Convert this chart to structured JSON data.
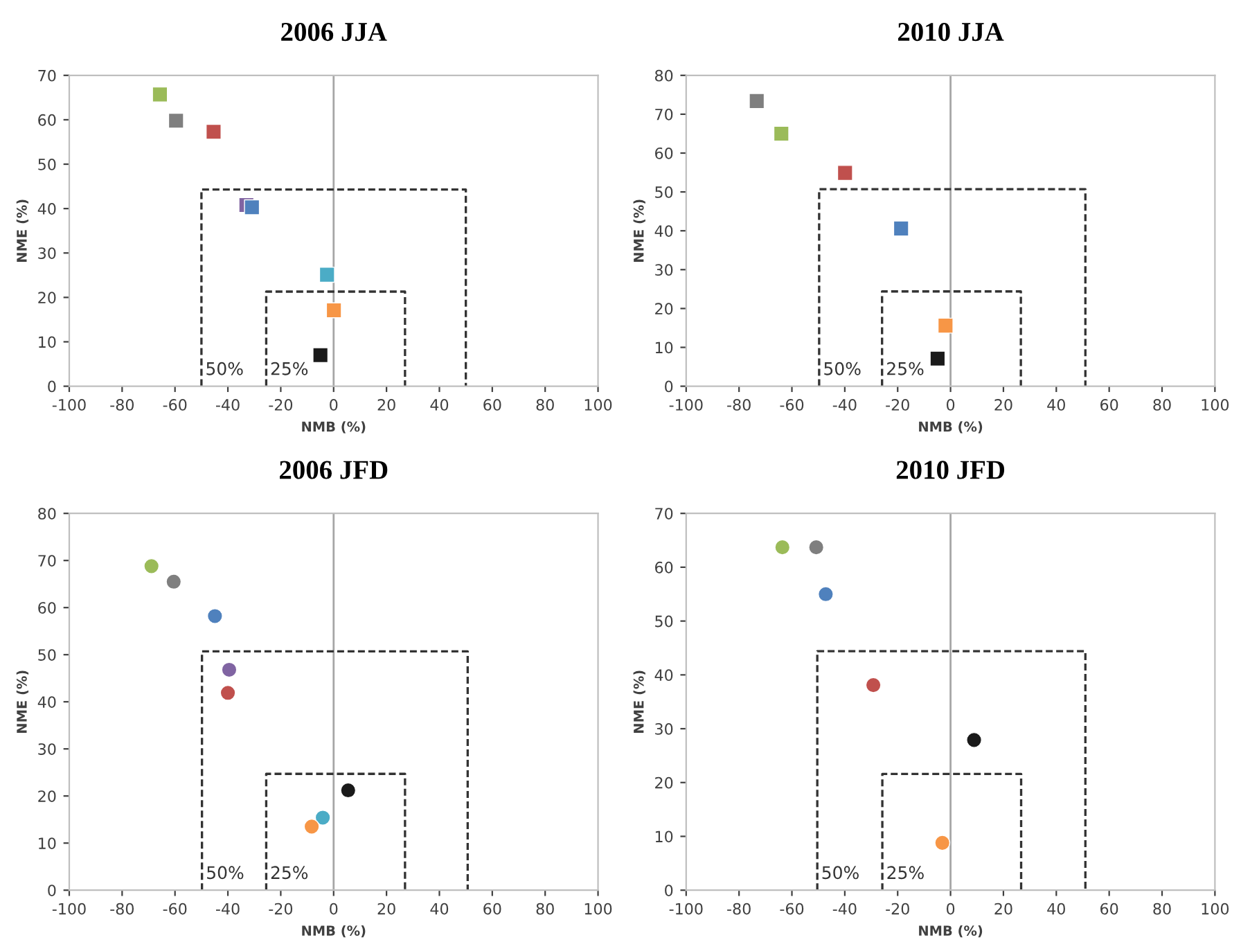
{
  "chart_data": [
    {
      "type": "scatter",
      "title": "2006 JJA",
      "xlabel": "NMB (%)",
      "ylabel": "NME (%)",
      "marker": "square",
      "xlim": [
        -100,
        100
      ],
      "ylim": [
        0,
        70
      ],
      "xticks": [
        -100,
        -80,
        -60,
        -40,
        -20,
        0,
        20,
        40,
        60,
        80,
        100
      ],
      "yticks": [
        0,
        10,
        20,
        30,
        40,
        50,
        60,
        70
      ],
      "ref_lines": [
        {
          "axis": "x",
          "value": 0,
          "color": "#a6a6a6"
        }
      ],
      "series": [
        {
          "color": "#4f81bd",
          "x": [
            -30.9
          ],
          "values": [
            40.3
          ]
        },
        {
          "color": "#f79646",
          "x": [
            0.1
          ],
          "values": [
            17.1
          ]
        },
        {
          "color": "#9bbb59",
          "x": [
            -65.7
          ],
          "values": [
            65.7
          ]
        },
        {
          "color": "#c0504d",
          "x": [
            -45.4
          ],
          "values": [
            57.3
          ]
        },
        {
          "color": "#8064a2",
          "x": [
            -33.0
          ],
          "values": [
            40.8
          ]
        },
        {
          "color": "#4bacc6",
          "x": [
            -2.5
          ],
          "values": [
            25.1
          ]
        },
        {
          "color": "#1a1a1a",
          "x": [
            -5.0
          ],
          "values": [
            7.0
          ]
        },
        {
          "color": "#7f7f7f",
          "x": [
            -59.6
          ],
          "values": [
            59.8
          ]
        },
        {
          "type": "line",
          "name": "50%",
          "color": "#333333",
          "line_style": "dashed",
          "marker": "none",
          "x": [
            -50,
            -50,
            50,
            50
          ],
          "values": [
            0,
            44.3,
            44.3,
            0
          ]
        },
        {
          "type": "line",
          "name": "25%",
          "color": "#333333",
          "line_style": "dashed",
          "marker": "none",
          "x": [
            -25.5,
            -25.5,
            27,
            27
          ],
          "values": [
            0,
            21.3,
            21.3,
            0
          ]
        }
      ]
    },
    {
      "type": "scatter",
      "title": "2010 JJA",
      "xlabel": "NMB (%)",
      "ylabel": "NME (%)",
      "marker": "square",
      "xlim": [
        -100,
        100
      ],
      "ylim": [
        0,
        80
      ],
      "xticks": [
        -100,
        -80,
        -60,
        -40,
        -20,
        0,
        20,
        40,
        60,
        80,
        100
      ],
      "yticks": [
        0,
        10,
        20,
        30,
        40,
        50,
        60,
        70,
        80
      ],
      "ref_lines": [
        {
          "axis": "x",
          "value": 0,
          "color": "#a6a6a6"
        }
      ],
      "series": [
        {
          "color": "#4f81bd",
          "x": [
            -18.7
          ],
          "values": [
            40.6
          ]
        },
        {
          "color": "#f79646",
          "x": [
            -1.9
          ],
          "values": [
            15.6
          ]
        },
        {
          "color": "#9bbb59",
          "x": [
            -64.0
          ],
          "values": [
            65.0
          ]
        },
        {
          "color": "#c0504d",
          "x": [
            -39.9
          ],
          "values": [
            54.9
          ]
        },
        {
          "color": "#1a1a1a",
          "x": [
            -4.9
          ],
          "values": [
            7.1
          ]
        },
        {
          "color": "#7f7f7f",
          "x": [
            -73.3
          ],
          "values": [
            73.4
          ]
        },
        {
          "type": "line",
          "name": "50%",
          "color": "#333333",
          "line_style": "dashed",
          "marker": "none",
          "x": [
            -49.7,
            -49.7,
            51,
            51
          ],
          "values": [
            0,
            50.7,
            50.7,
            0
          ]
        },
        {
          "type": "line",
          "name": "25%",
          "color": "#333333",
          "line_style": "dashed",
          "marker": "none",
          "x": [
            -25.9,
            -25.9,
            26.6,
            26.6
          ],
          "values": [
            0,
            24.4,
            24.4,
            0
          ]
        }
      ]
    },
    {
      "type": "scatter",
      "title": "2006 JFD",
      "xlabel": "NMB (%)",
      "ylabel": "NME (%)",
      "marker": "circle",
      "xlim": [
        -100,
        100
      ],
      "ylim": [
        0,
        80
      ],
      "xticks": [
        -100,
        -80,
        -60,
        -40,
        -20,
        0,
        20,
        40,
        60,
        80,
        100
      ],
      "yticks": [
        0,
        10,
        20,
        30,
        40,
        50,
        60,
        70,
        80
      ],
      "ref_lines": [
        {
          "axis": "x",
          "value": 0,
          "color": "#a6a6a6"
        }
      ],
      "series": [
        {
          "color": "#4f81bd",
          "x": [
            -44.9
          ],
          "values": [
            58.2
          ]
        },
        {
          "color": "#f79646",
          "x": [
            -8.3
          ],
          "values": [
            13.5
          ]
        },
        {
          "color": "#9bbb59",
          "x": [
            -68.9
          ],
          "values": [
            68.8
          ]
        },
        {
          "color": "#c0504d",
          "x": [
            -40.0
          ],
          "values": [
            41.9
          ]
        },
        {
          "color": "#8064a2",
          "x": [
            -39.5
          ],
          "values": [
            46.8
          ]
        },
        {
          "color": "#4bacc6",
          "x": [
            -4.1
          ],
          "values": [
            15.4
          ]
        },
        {
          "color": "#1a1a1a",
          "x": [
            5.5
          ],
          "values": [
            21.2
          ]
        },
        {
          "color": "#7f7f7f",
          "x": [
            -60.5
          ],
          "values": [
            65.5
          ]
        },
        {
          "type": "line",
          "name": "50%",
          "color": "#333333",
          "line_style": "dashed",
          "marker": "none",
          "x": [
            -49.8,
            -49.8,
            50.7,
            50.7
          ],
          "values": [
            0,
            50.7,
            50.7,
            0
          ]
        },
        {
          "type": "line",
          "name": "25%",
          "color": "#333333",
          "line_style": "dashed",
          "marker": "none",
          "x": [
            -25.5,
            -25.5,
            27,
            27
          ],
          "values": [
            0,
            24.7,
            24.7,
            0
          ]
        }
      ]
    },
    {
      "type": "scatter",
      "title": "2010 JFD",
      "xlabel": "NMB (%)",
      "ylabel": "NME (%)",
      "marker": "circle",
      "xlim": [
        -100,
        100
      ],
      "ylim": [
        0,
        70
      ],
      "xticks": [
        -100,
        -80,
        -60,
        -40,
        -20,
        0,
        20,
        40,
        60,
        80,
        100
      ],
      "yticks": [
        0,
        10,
        20,
        30,
        40,
        50,
        60,
        70
      ],
      "ref_lines": [
        {
          "axis": "x",
          "value": 0,
          "color": "#a6a6a6"
        }
      ],
      "series": [
        {
          "color": "#4f81bd",
          "x": [
            -47.2
          ],
          "values": [
            55.0
          ]
        },
        {
          "color": "#f79646",
          "x": [
            -3.1
          ],
          "values": [
            8.8
          ]
        },
        {
          "color": "#9bbb59",
          "x": [
            -63.6
          ],
          "values": [
            63.7
          ]
        },
        {
          "color": "#c0504d",
          "x": [
            -29.2
          ],
          "values": [
            38.1
          ]
        },
        {
          "color": "#1a1a1a",
          "x": [
            8.9
          ],
          "values": [
            27.9
          ]
        },
        {
          "color": "#7f7f7f",
          "x": [
            -50.8
          ],
          "values": [
            63.7
          ]
        },
        {
          "type": "line",
          "name": "50%",
          "color": "#333333",
          "line_style": "dashed",
          "marker": "none",
          "x": [
            -50.4,
            -50.4,
            51,
            51
          ],
          "values": [
            0,
            44.4,
            44.4,
            0
          ]
        },
        {
          "type": "line",
          "name": "25%",
          "color": "#333333",
          "line_style": "dashed",
          "marker": "none",
          "x": [
            -25.8,
            -25.8,
            26.7,
            26.7
          ],
          "values": [
            0,
            21.6,
            21.6,
            0
          ]
        }
      ]
    }
  ]
}
